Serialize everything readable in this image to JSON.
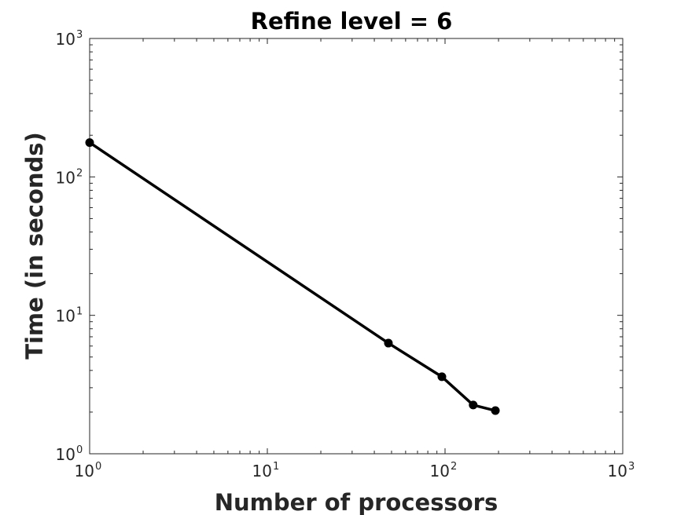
{
  "chart_data": {
    "type": "line",
    "title": "Refine level = 6",
    "xlabel": "Number of processors",
    "ylabel": "Time (in seconds)",
    "x_scale": "log",
    "y_scale": "log",
    "xlim": [
      1,
      1000
    ],
    "ylim": [
      1,
      1000
    ],
    "grid": false,
    "x_tick_labels": [
      {
        "value": 1,
        "base": "10",
        "exp": "0"
      },
      {
        "value": 10,
        "base": "10",
        "exp": "1"
      },
      {
        "value": 100,
        "base": "10",
        "exp": "2"
      },
      {
        "value": 1000,
        "base": "10",
        "exp": "3"
      }
    ],
    "y_tick_labels": [
      {
        "value": 1,
        "base": "10",
        "exp": "0"
      },
      {
        "value": 10,
        "base": "10",
        "exp": "1"
      },
      {
        "value": 100,
        "base": "10",
        "exp": "2"
      },
      {
        "value": 1000,
        "base": "10",
        "exp": "3"
      }
    ],
    "series": [
      {
        "color": "#000000",
        "marker": "circle",
        "x": [
          1,
          48,
          96,
          144,
          192
        ],
        "y": [
          177,
          6.3,
          3.6,
          2.25,
          2.05
        ]
      }
    ]
  }
}
